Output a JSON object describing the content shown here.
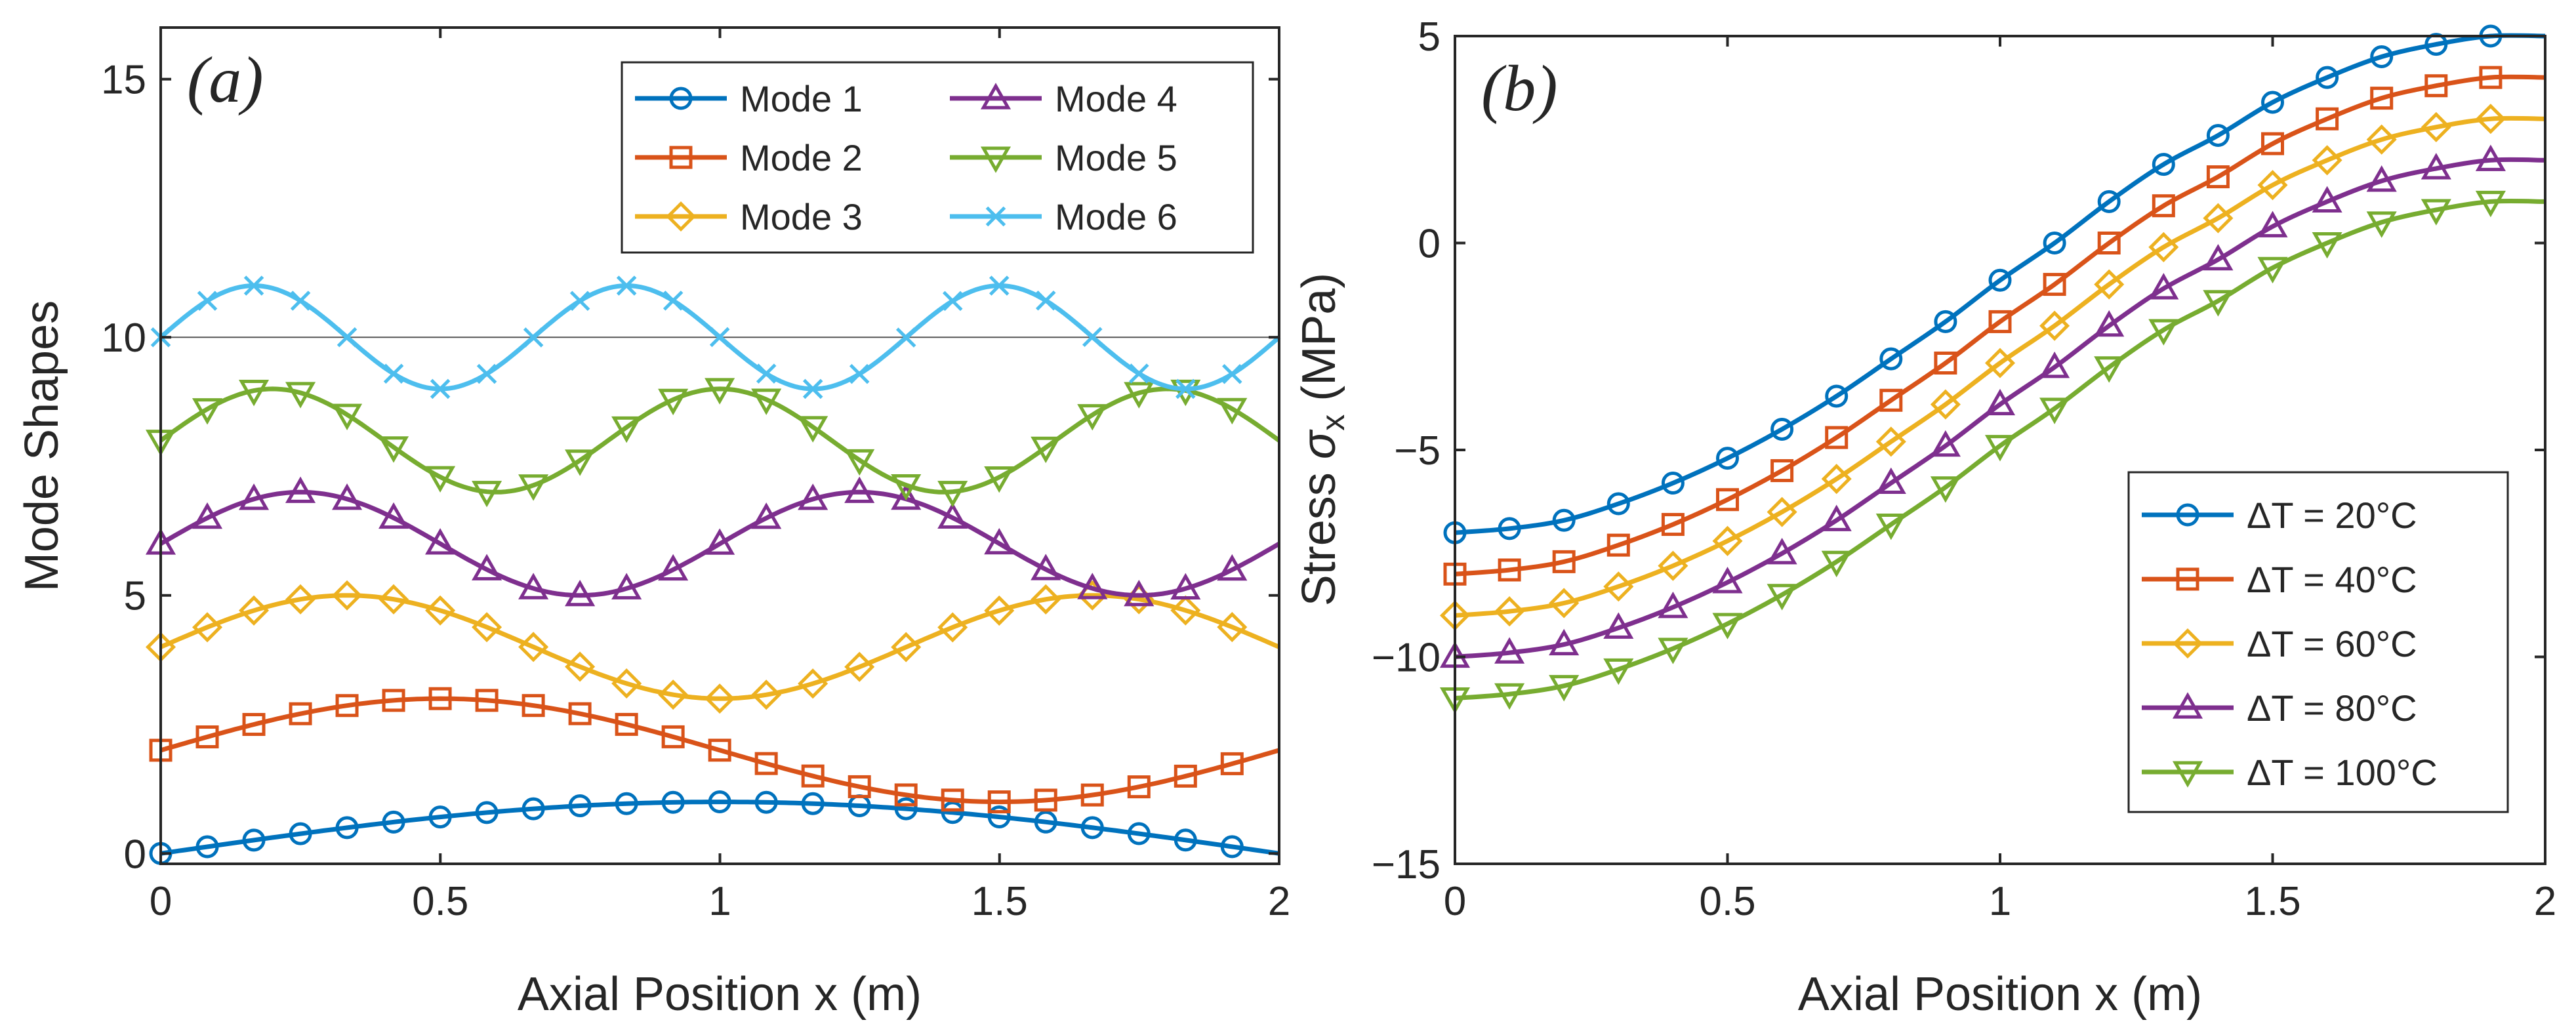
{
  "colors": {
    "axis": "#262626",
    "refline": "#555555",
    "legend_border": "#262626",
    "series": [
      "#0072BD",
      "#D95319",
      "#EDB120",
      "#7E2F8E",
      "#77AC30",
      "#4DBEEE"
    ]
  },
  "chart_data": [
    {
      "type": "line",
      "panel_label": "(a)",
      "xlabel": "Axial Position x (m)",
      "ylabel": "Mode Shapes",
      "xlim": [
        0,
        2
      ],
      "ylim": [
        -0.2,
        16
      ],
      "xticks": [
        0,
        0.5,
        1,
        1.5,
        2
      ],
      "xtick_labels": [
        "0",
        "0.5",
        "1",
        "1.5",
        "2"
      ],
      "yticks": [
        0,
        5,
        10,
        15
      ],
      "ytick_labels": [
        "0",
        "5",
        "10",
        "15"
      ],
      "reference_line_y": 10,
      "legend_position": "top-right",
      "legend_columns": 2,
      "marker_x_step": 0.0833,
      "series": [
        {
          "name": "Mode 1",
          "marker": "circle",
          "offset": 0,
          "wave": "sin",
          "cycles": 0.5
        },
        {
          "name": "Mode 2",
          "marker": "square",
          "offset": 2,
          "wave": "sin",
          "cycles": 1.0
        },
        {
          "name": "Mode 3",
          "marker": "diamond",
          "offset": 4,
          "wave": "sin",
          "cycles": 1.5
        },
        {
          "name": "Mode 4",
          "marker": "triangle-up",
          "offset": 6,
          "wave": "sin",
          "cycles": 2.0
        },
        {
          "name": "Mode 5",
          "marker": "triangle-down",
          "offset": 8,
          "wave": "sin",
          "cycles": 2.5
        },
        {
          "name": "Mode 6",
          "marker": "x",
          "offset": 10,
          "wave": "sin",
          "cycles": 3.0
        }
      ]
    },
    {
      "type": "line",
      "panel_label": "(b)",
      "xlabel": "Axial Position x (m)",
      "ylabel": "Stress σx (MPa)",
      "ylabel_main": "Stress ",
      "ylabel_symbol": "σ",
      "ylabel_sub": "x",
      "ylabel_unit": " (MPa)",
      "xlim": [
        0,
        2
      ],
      "ylim": [
        -15,
        5
      ],
      "xticks": [
        0,
        0.5,
        1,
        1.5,
        2
      ],
      "xtick_labels": [
        "0",
        "0.5",
        "1",
        "1.5",
        "2"
      ],
      "yticks": [
        -15,
        -10,
        -5,
        0,
        5
      ],
      "ytick_labels": [
        "−15",
        "−10",
        "−5",
        "0",
        "5"
      ],
      "legend_position": "bottom-right",
      "x": [
        0,
        0.1,
        0.2,
        0.3,
        0.4,
        0.5,
        0.6,
        0.7,
        0.8,
        0.9,
        1.0,
        1.1,
        1.2,
        1.3,
        1.4,
        1.5,
        1.6,
        1.7,
        1.8,
        1.9
      ],
      "series": [
        {
          "name": "ΔT = 20°C",
          "marker": "circle",
          "values": [
            -7.0,
            -6.9,
            -6.7,
            -6.3,
            -5.8,
            -5.2,
            -4.5,
            -3.7,
            -2.8,
            -1.9,
            -0.9,
            0.0,
            1.0,
            1.9,
            2.6,
            3.4,
            4.0,
            4.5,
            4.8,
            5.0
          ]
        },
        {
          "name": "ΔT = 40°C",
          "marker": "square",
          "values": [
            -8.0,
            -7.9,
            -7.7,
            -7.3,
            -6.8,
            -6.2,
            -5.5,
            -4.7,
            -3.8,
            -2.9,
            -1.9,
            -1.0,
            0.0,
            0.9,
            1.6,
            2.4,
            3.0,
            3.5,
            3.8,
            4.0
          ]
        },
        {
          "name": "ΔT = 60°C",
          "marker": "diamond",
          "values": [
            -9.0,
            -8.9,
            -8.7,
            -8.3,
            -7.8,
            -7.2,
            -6.5,
            -5.7,
            -4.8,
            -3.9,
            -2.9,
            -2.0,
            -1.0,
            -0.1,
            0.6,
            1.4,
            2.0,
            2.5,
            2.8,
            3.0
          ]
        },
        {
          "name": "ΔT = 80°C",
          "marker": "triangle-up",
          "values": [
            -10.0,
            -9.9,
            -9.7,
            -9.3,
            -8.8,
            -8.2,
            -7.5,
            -6.7,
            -5.8,
            -4.9,
            -3.9,
            -3.0,
            -2.0,
            -1.1,
            -0.4,
            0.4,
            1.0,
            1.5,
            1.8,
            2.0
          ]
        },
        {
          "name": "ΔT = 100°C",
          "marker": "triangle-down",
          "values": [
            -11.0,
            -10.9,
            -10.7,
            -10.3,
            -9.8,
            -9.2,
            -8.5,
            -7.7,
            -6.8,
            -5.9,
            -4.9,
            -4.0,
            -3.0,
            -2.1,
            -1.4,
            -0.6,
            0.0,
            0.5,
            0.8,
            1.0
          ]
        }
      ]
    }
  ]
}
